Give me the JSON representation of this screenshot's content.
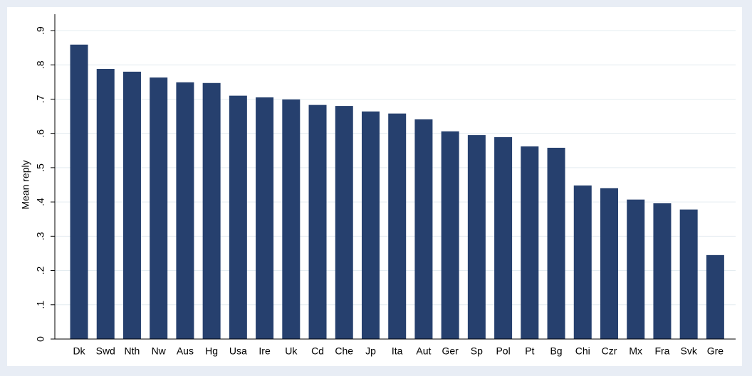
{
  "chart_data": {
    "type": "bar",
    "y_label": "Mean reply",
    "categories": [
      "Dk",
      "Swd",
      "Nth",
      "Nw",
      "Aus",
      "Hg",
      "Usa",
      "Ire",
      "Uk",
      "Cd",
      "Che",
      "Jp",
      "Ita",
      "Aut",
      "Ger",
      "Sp",
      "Pol",
      "Pt",
      "Bg",
      "Chi",
      "Czr",
      "Mx",
      "Fra",
      "Svk",
      "Gre"
    ],
    "values": [
      0.859,
      0.788,
      0.78,
      0.763,
      0.749,
      0.747,
      0.71,
      0.705,
      0.699,
      0.683,
      0.68,
      0.664,
      0.658,
      0.641,
      0.606,
      0.595,
      0.589,
      0.562,
      0.558,
      0.448,
      0.44,
      0.407,
      0.396,
      0.378,
      0.245
    ],
    "color": "#26406e",
    "ylim": [
      0,
      0.9
    ],
    "yticks": [
      0,
      {
        "value": 0.1,
        "label": ".1"
      },
      {
        "value": 0.2,
        "label": ".2"
      },
      {
        "value": 0.3,
        "label": ".3"
      },
      {
        "value": 0.4,
        "label": ".4"
      },
      {
        "value": 0.5,
        "label": ".5"
      },
      {
        "value": 0.6,
        "label": ".6"
      },
      {
        "value": 0.7,
        "label": ".7"
      },
      {
        "value": 0.8,
        "label": ".8"
      },
      {
        "value": 0.9,
        "label": ".9"
      }
    ],
    "grid": true
  }
}
